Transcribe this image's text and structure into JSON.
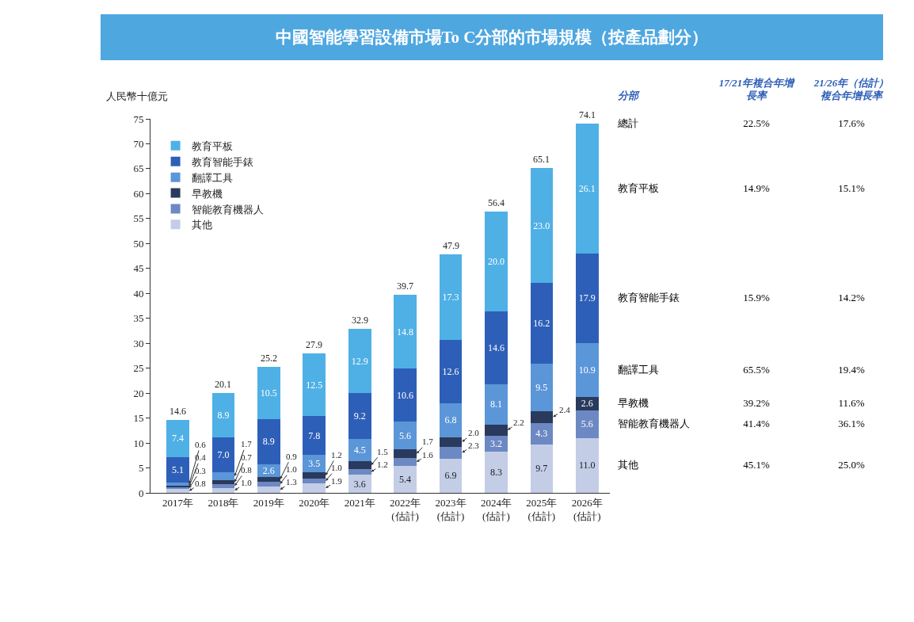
{
  "chart_data": [
    {
      "type": "bar",
      "title": "中國智能學習設備市場To C分部的市場規模（按產品劃分）",
      "ylabel": "人民幣十億元",
      "stacked": true,
      "legend": "top left",
      "grid": false,
      "ylim": [
        0,
        75
      ],
      "yticks": [
        0,
        5,
        10,
        15,
        20,
        25,
        30,
        35,
        40,
        45,
        50,
        55,
        60,
        65,
        70,
        75
      ],
      "categories": [
        "2017年",
        "2018年",
        "2019年",
        "2020年",
        "2021年",
        "2022年\n(估計)",
        "2023年\n(估計)",
        "2024年\n(估計)",
        "2025年\n(估計)",
        "2026年\n(估計)"
      ],
      "series": [
        {
          "name": "其他",
          "color": "#c3cde6",
          "values": [
            0.8,
            1.0,
            1.3,
            1.9,
            3.6,
            5.4,
            6.9,
            8.3,
            9.7,
            11.0
          ],
          "value_labels": [
            "0.8",
            "1.0",
            "1.3",
            "1.9",
            "3.6",
            "5.4",
            "6.9",
            "8.3",
            "9.7",
            "11.0"
          ]
        },
        {
          "name": "智能教育機器人",
          "color": "#6d89c4",
          "values": [
            0.3,
            0.8,
            1.0,
            1.0,
            1.2,
            1.6,
            2.3,
            3.2,
            4.3,
            5.6
          ],
          "value_labels": [
            "0.3",
            "0.8",
            "1.0",
            "1.0",
            "1.2",
            "1.6",
            "2.3",
            "3.2",
            "4.3",
            "5.6"
          ]
        },
        {
          "name": "早教機",
          "color": "#2a3a5c",
          "values": [
            0.4,
            0.7,
            0.9,
            1.2,
            1.5,
            1.7,
            2.0,
            2.2,
            2.4,
            2.6
          ],
          "value_labels": [
            "0.4",
            "0.7",
            "0.9",
            "1.2",
            "1.5",
            "1.7",
            "2.0",
            "2.2",
            "2.4",
            "2.6"
          ]
        },
        {
          "name": "翻譯工具",
          "color": "#5b96d8",
          "values": [
            0.6,
            1.7,
            2.6,
            3.5,
            4.5,
            5.6,
            6.8,
            8.1,
            9.5,
            10.9
          ],
          "value_labels": [
            "0.6",
            "1.7",
            "2.6",
            "3.5",
            "4.5",
            "5.6",
            "6.8",
            "8.1",
            "9.5",
            "10.9"
          ]
        },
        {
          "name": "教育智能手錶",
          "color": "#2e5fb8",
          "values": [
            5.1,
            7.0,
            8.9,
            7.8,
            9.2,
            10.6,
            12.6,
            14.6,
            16.2,
            17.9
          ],
          "value_labels": [
            "5.1",
            "7.0",
            "8.9",
            "7.8",
            "9.2",
            "10.6",
            "12.6",
            "14.6",
            "16.2",
            "17.9"
          ]
        },
        {
          "name": "教育平板",
          "color": "#4fb0e5",
          "values": [
            7.4,
            8.9,
            10.5,
            12.5,
            12.9,
            14.8,
            17.3,
            20.0,
            23.0,
            26.1
          ],
          "value_labels": [
            "7.4",
            "8.9",
            "10.5",
            "12.5",
            "12.9",
            "14.8",
            "17.3",
            "20.0",
            "23.0",
            "26.1"
          ]
        }
      ],
      "totals": [
        "14.6",
        "20.1",
        "25.2",
        "27.9",
        "32.9",
        "39.7",
        "47.9",
        "56.4",
        "65.1",
        "74.1"
      ]
    },
    {
      "type": "other",
      "xlabel": "分部",
      "categories": [
        "總計",
        "教育平板",
        "教育智能手錶",
        "翻譯工具",
        "早教機",
        "智能教育機器人",
        "其他"
      ],
      "series": [
        {
          "name": "17/21年複合年增長率",
          "values": [
            22.5,
            14.9,
            15.9,
            65.5,
            39.2,
            41.4,
            45.1
          ],
          "value_labels": [
            "22.5%",
            "14.9%",
            "15.9%",
            "65.5%",
            "39.2%",
            "41.4%",
            "45.1%"
          ]
        },
        {
          "name": "21/26年（估計）複合年增長率",
          "values": [
            17.6,
            15.1,
            14.2,
            19.4,
            11.6,
            36.1,
            25.0
          ],
          "value_labels": [
            "17.6%",
            "15.1%",
            "14.2%",
            "19.4%",
            "11.6%",
            "36.1%",
            "25.0%"
          ]
        }
      ]
    }
  ]
}
